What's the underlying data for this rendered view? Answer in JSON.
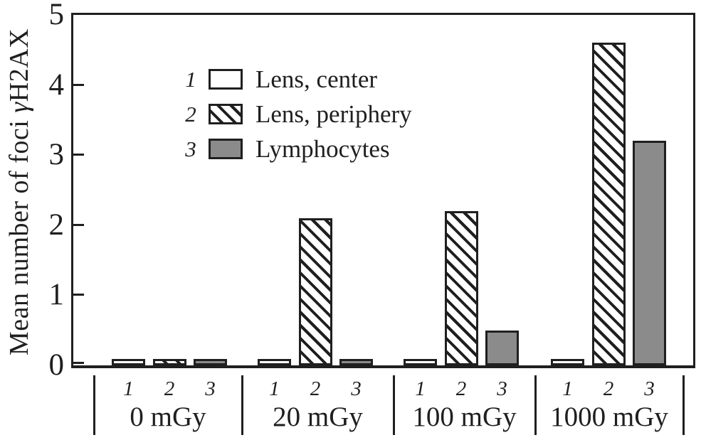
{
  "figure": {
    "ylabel_prefix": "Mean number of foci ",
    "ylabel_gamma": "γ",
    "ylabel_suffix": "H2AX"
  },
  "colors": {
    "ink": "#1f1f1f",
    "gray_fill": "#8b8b8b",
    "background": "#ffffff"
  },
  "chart_data": {
    "type": "bar",
    "title": "",
    "xlabel": "",
    "ylabel": "Mean number of foci γH2AX",
    "ylim": [
      0,
      5
    ],
    "yticks": [
      0,
      1,
      2,
      3,
      4,
      5
    ],
    "grid": false,
    "legend_position": "top-left-inside",
    "categories": [
      "0 mGy",
      "20 mGy",
      "100 mGy",
      "1000 mGy"
    ],
    "group_bar_labels": [
      "1",
      "2",
      "3"
    ],
    "series": [
      {
        "id": "1",
        "name": "Lens, center",
        "pattern": "white",
        "values": [
          0.05,
          0.05,
          0.05,
          0.05
        ]
      },
      {
        "id": "2",
        "name": "Lens, periphery",
        "pattern": "hatched",
        "values": [
          0.05,
          2.1,
          2.2,
          4.6
        ]
      },
      {
        "id": "3",
        "name": "Lymphocytes",
        "pattern": "gray",
        "values": [
          0.05,
          0.05,
          0.5,
          3.2
        ]
      }
    ]
  }
}
